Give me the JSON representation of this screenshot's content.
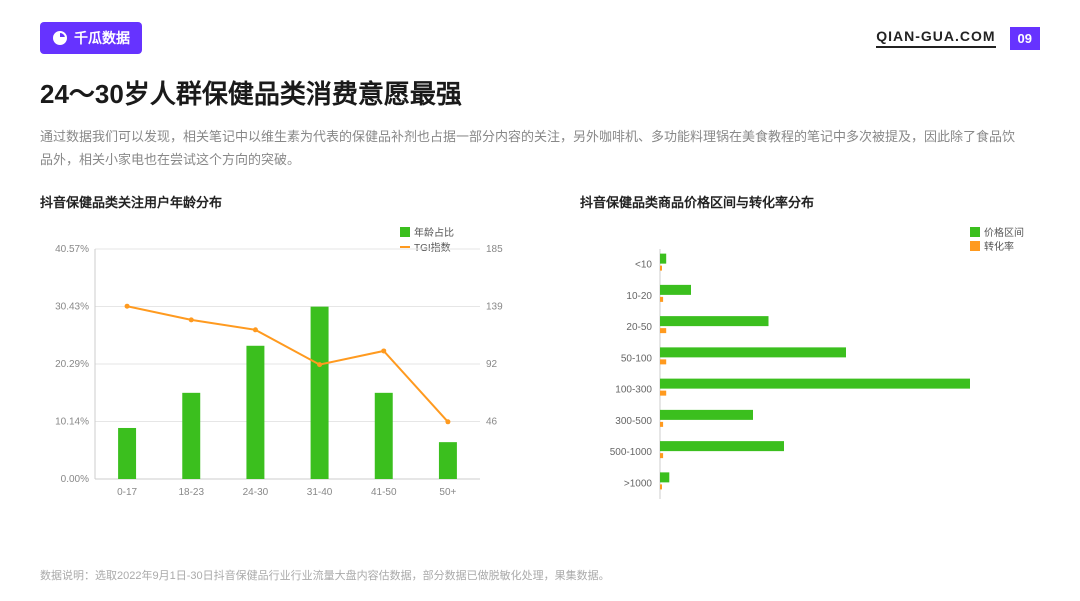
{
  "header": {
    "brand": "千瓜数据",
    "site": "QIAN-GUA.COM",
    "page": "09"
  },
  "title": "24～30岁人群保健品类消费意愿最强",
  "description": "通过数据我们可以发现，相关笔记中以维生素为代表的保健品补剂也占据一部分内容的关注，另外咖啡机、多功能料理锅在美食教程的笔记中多次被提及，因此除了食品饮品外，相关小家电也在尝试这个方向的突破。",
  "footnote": "数据说明：选取2022年9月1日-30日抖音保健品行业行业流量大盘内容估数据，部分数据已做脱敏化处理，果集数据。",
  "chart_left": {
    "title": "抖音保健品类关注用户年龄分布",
    "type": "bar+line",
    "categories": [
      "0-17",
      "18-23",
      "24-30",
      "31-40",
      "41-50",
      "50+"
    ],
    "bar_values_pct": [
      9.0,
      15.2,
      23.5,
      30.4,
      15.2,
      6.5
    ],
    "line_values_tgi": [
      139,
      128,
      120,
      92,
      103,
      46
    ],
    "y_left_ticks": [
      "0.00%",
      "10.14%",
      "20.29%",
      "30.43%",
      "40.57%"
    ],
    "y_left_max": 40.57,
    "y_right_ticks": [
      "46",
      "92",
      "139",
      "185"
    ],
    "y_right_max": 185,
    "bar_color": "#3bbf1e",
    "line_color": "#ff9a1f",
    "axis_color": "#cccccc",
    "grid_color": "#e6e6e6",
    "tick_fontsize": 10,
    "legend": {
      "bar": "年龄占比",
      "line": "TGI指数"
    }
  },
  "chart_right": {
    "title": "抖音保健品类商品价格区间与转化率分布",
    "type": "hbar-dual",
    "categories": [
      "<10",
      "10-20",
      "20-50",
      "50-100",
      "100-300",
      "300-500",
      "500-1000",
      ">1000"
    ],
    "series_a": [
      2,
      10,
      35,
      60,
      100,
      30,
      40,
      3
    ],
    "series_b": [
      0.5,
      1,
      2,
      2,
      2,
      1,
      1,
      0.5
    ],
    "series_a_color": "#3bbf1e",
    "series_b_color": "#ff9a1f",
    "axis_color": "#cccccc",
    "tick_fontsize": 10,
    "x_max": 100,
    "legend": {
      "a": "价格区间",
      "b": "转化率"
    }
  },
  "colors": {
    "brand": "#6633ff",
    "text_primary": "#1a1a1a",
    "text_muted": "#888888"
  }
}
